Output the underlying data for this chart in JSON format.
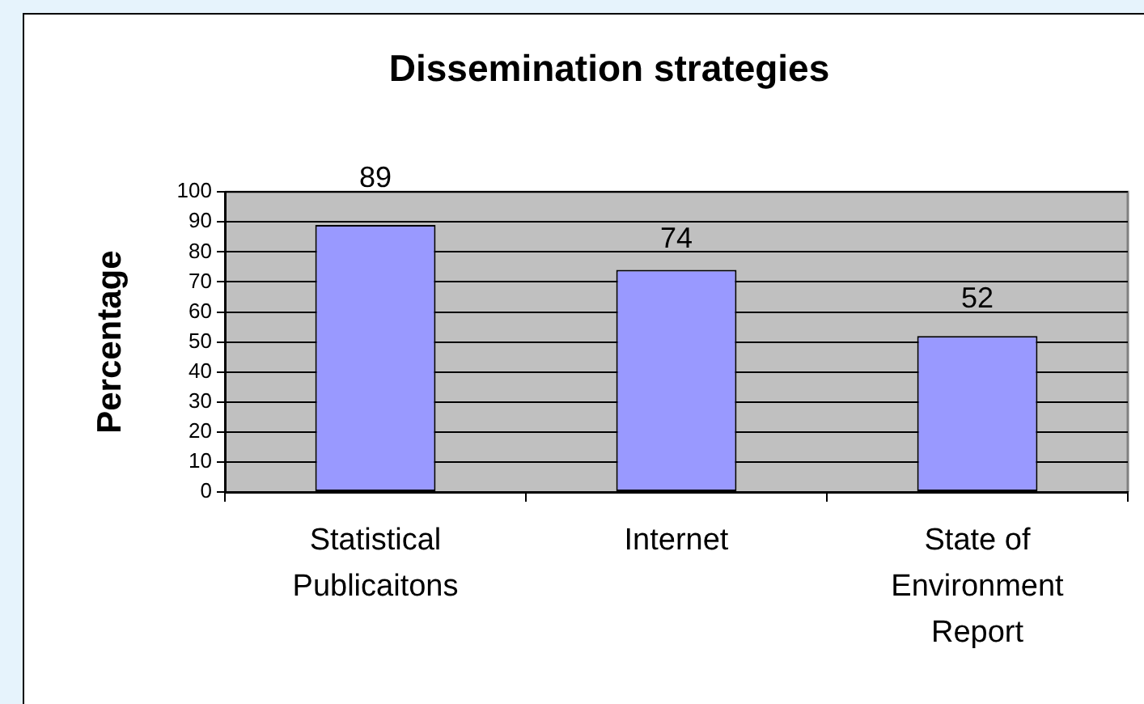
{
  "chart_data": {
    "type": "bar",
    "title": "Dissemination strategies",
    "ylabel": "Percentage",
    "categories": [
      "Statistical Publicaitons",
      "Internet",
      "State of Environment Report"
    ],
    "values": [
      89,
      74,
      52
    ],
    "color": "#9999ff",
    "ylim": [
      0,
      100
    ],
    "yticks": [
      0,
      10,
      20,
      30,
      40,
      50,
      60,
      70,
      80,
      90,
      100
    ],
    "grid": "y",
    "data_labels": true,
    "legend": false
  }
}
